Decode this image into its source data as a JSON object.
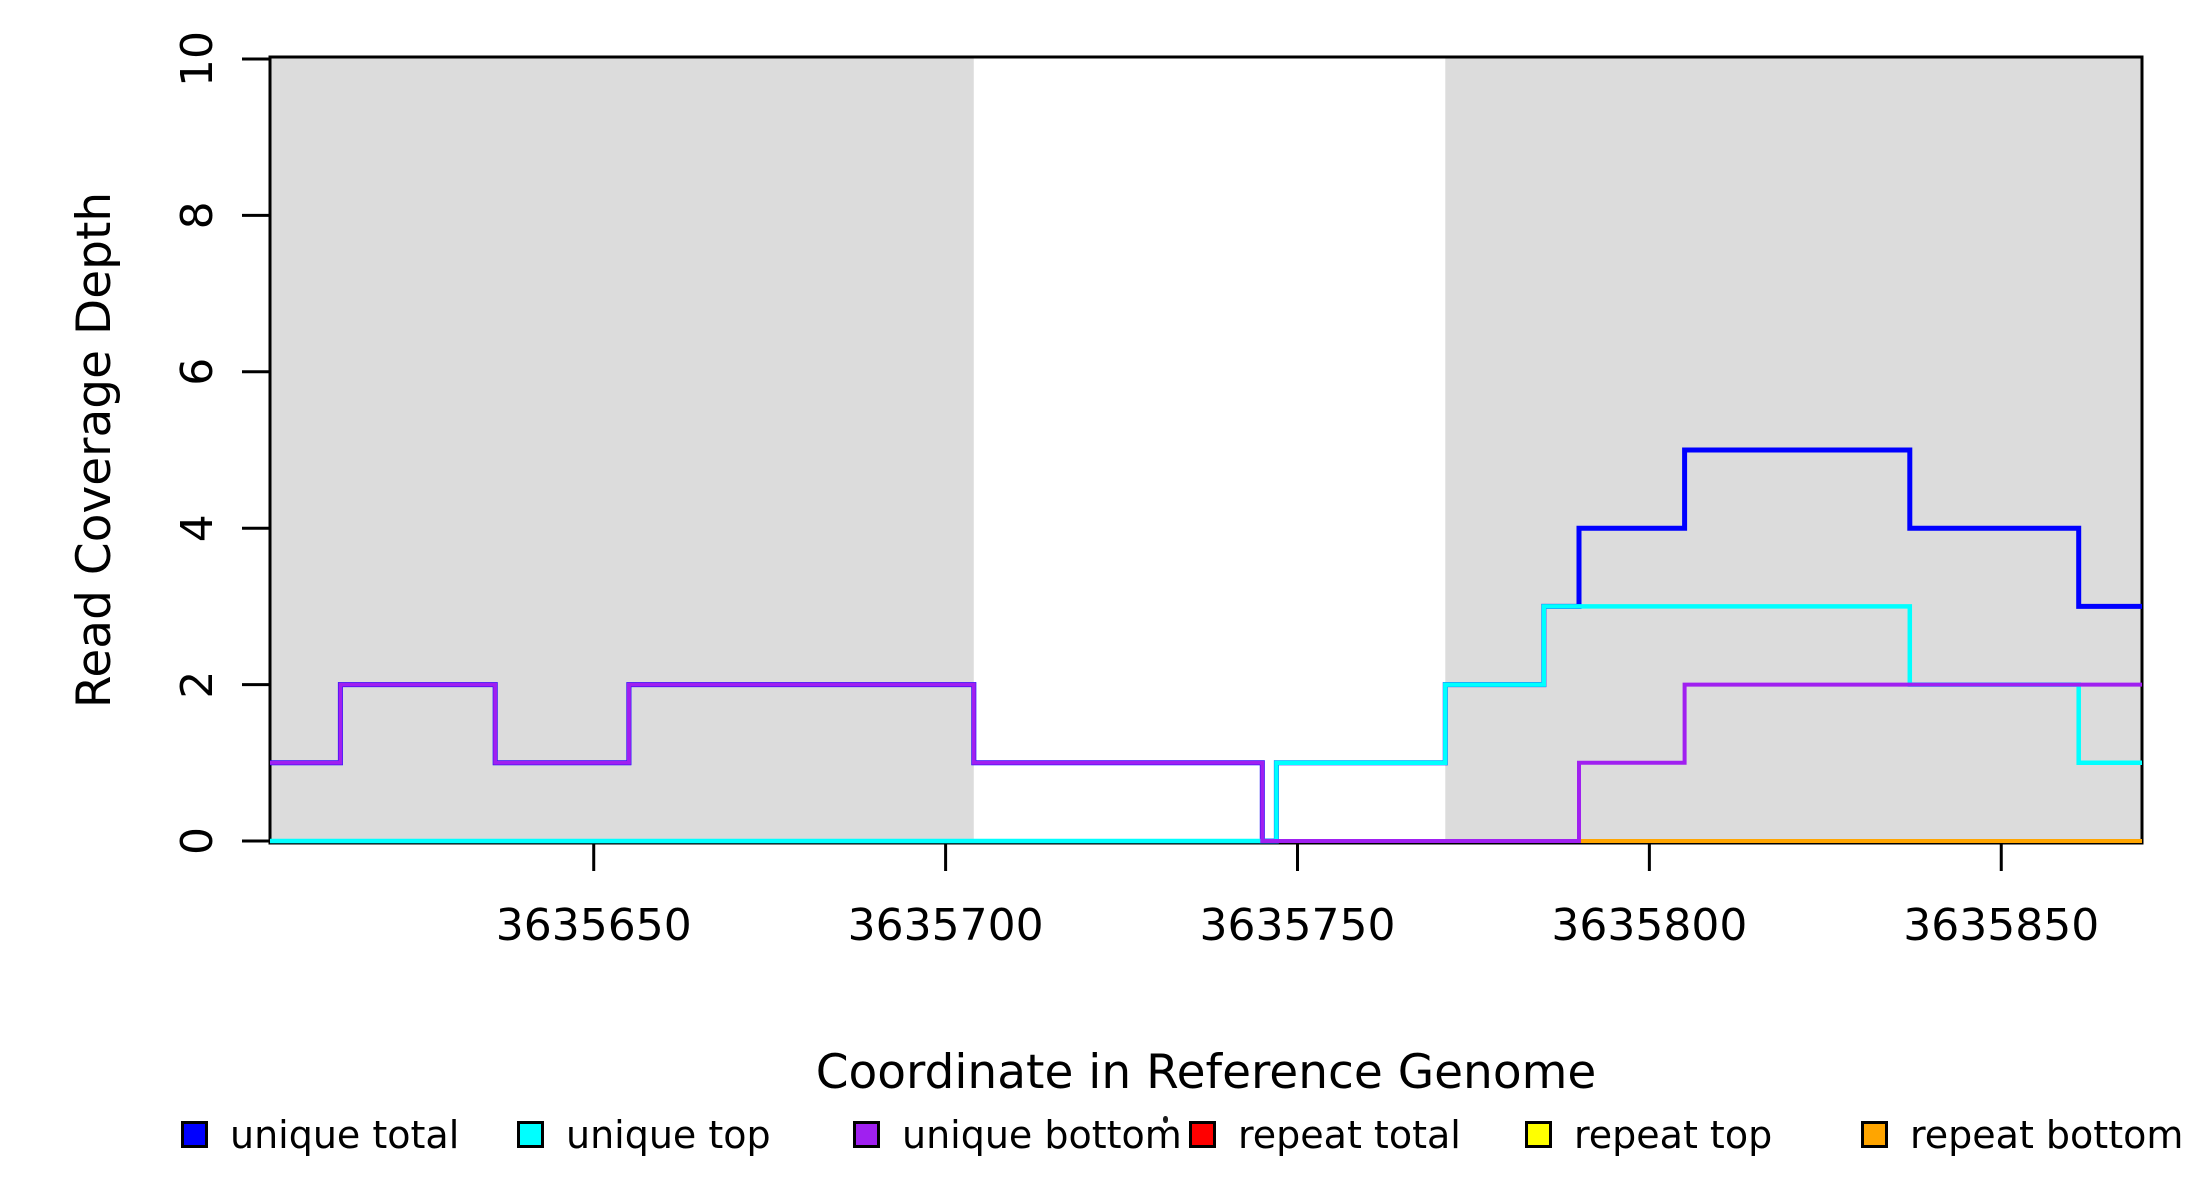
{
  "page": {
    "background": "#ffffff",
    "axis_color": "#000000",
    "text_color": "#000000"
  },
  "chart_data": {
    "type": "line",
    "style": "step",
    "title": "",
    "xlabel": "Coordinate in Reference Genome",
    "ylabel": "Read Coverage Depth",
    "xlim": [
      3635604,
      3635870
    ],
    "ylim": [
      0,
      10
    ],
    "xticks": [
      3635650,
      3635700,
      3635750,
      3635800,
      3635850
    ],
    "yticks": [
      0,
      2,
      4,
      6,
      8,
      10
    ],
    "grid": false,
    "legend_position": "bottom",
    "shaded_regions": {
      "color": "#DCDCDC",
      "note": "gray background rectangles spanning full plot height",
      "regions": [
        [
          3635604,
          3635704
        ],
        [
          3635771,
          3635870
        ]
      ]
    },
    "series": [
      {
        "name": "repeat total",
        "color": "#FF0000",
        "linewidth": 4,
        "steps": [
          [
            3635604,
            0
          ],
          [
            3635870,
            0
          ]
        ]
      },
      {
        "name": "repeat top",
        "color": "#FFFF00",
        "linewidth": 4,
        "steps": [
          [
            3635604,
            0
          ],
          [
            3635870,
            0
          ]
        ]
      },
      {
        "name": "repeat bottom",
        "color": "#FFA500",
        "linewidth": 4,
        "steps": [
          [
            3635604,
            0
          ],
          [
            3635870,
            0
          ]
        ]
      },
      {
        "name": "unique total",
        "color": "#0000FF",
        "linewidth": 5,
        "steps": [
          [
            3635604,
            1
          ],
          [
            3635614,
            2
          ],
          [
            3635636,
            1
          ],
          [
            3635655,
            2
          ],
          [
            3635704,
            1
          ],
          [
            3635745,
            0
          ],
          [
            3635747,
            1
          ],
          [
            3635771,
            2
          ],
          [
            3635785,
            3
          ],
          [
            3635790,
            4
          ],
          [
            3635805,
            5
          ],
          [
            3635837,
            4
          ],
          [
            3635861,
            3
          ],
          [
            3635870,
            3
          ]
        ]
      },
      {
        "name": "unique top",
        "color": "#00FFFF",
        "linewidth": 4.5,
        "steps": [
          [
            3635604,
            0
          ],
          [
            3635747,
            1
          ],
          [
            3635771,
            2
          ],
          [
            3635785,
            3
          ],
          [
            3635837,
            2
          ],
          [
            3635861,
            1
          ],
          [
            3635870,
            1
          ]
        ]
      },
      {
        "name": "unique bottom",
        "color": "#A020F0",
        "linewidth": 4,
        "steps": [
          [
            3635604,
            1
          ],
          [
            3635614,
            2
          ],
          [
            3635636,
            1
          ],
          [
            3635655,
            2
          ],
          [
            3635704,
            1
          ],
          [
            3635745,
            0
          ],
          [
            3635790,
            1
          ],
          [
            3635805,
            2
          ],
          [
            3635870,
            2
          ]
        ]
      }
    ]
  },
  "legend": {
    "items": [
      {
        "label": "unique total",
        "color": "#0000FF"
      },
      {
        "label": "unique top",
        "color": "#00FFFF"
      },
      {
        "label": "unique bottom",
        "color": "#A020F0"
      },
      {
        "label": "repeat total",
        "color": "#FF0000"
      },
      {
        "label": "repeat top",
        "color": "#FFFF00"
      },
      {
        "label": "repeat bottom",
        "color": "#FFA500"
      }
    ]
  }
}
